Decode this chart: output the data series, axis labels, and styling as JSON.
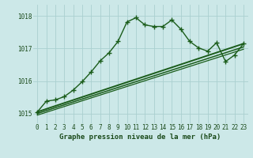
{
  "title": "Graphe pression niveau de la mer (hPa)",
  "bg_color": "#cce8e8",
  "grid_color": "#aad0d0",
  "line_color": "#1a5c1a",
  "x_ticks": [
    0,
    1,
    2,
    3,
    4,
    5,
    6,
    7,
    8,
    9,
    10,
    11,
    12,
    13,
    14,
    15,
    16,
    17,
    18,
    19,
    20,
    21,
    22,
    23
  ],
  "ylim": [
    1014.7,
    1018.35
  ],
  "yticks": [
    1015,
    1016,
    1017,
    1018
  ],
  "series": [
    {
      "x": [
        0,
        1,
        2,
        3,
        4,
        5,
        6,
        7,
        8,
        9,
        10,
        11,
        12,
        13,
        14,
        15,
        16,
        17,
        18,
        19,
        20,
        21,
        22,
        23
      ],
      "y": [
        1015.05,
        1015.38,
        1015.42,
        1015.52,
        1015.72,
        1015.98,
        1016.28,
        1016.62,
        1016.87,
        1017.22,
        1017.82,
        1017.95,
        1017.73,
        1017.68,
        1017.68,
        1017.88,
        1017.6,
        1017.22,
        1017.02,
        1016.92,
        1017.18,
        1016.6,
        1016.8,
        1017.15
      ],
      "marker": "+",
      "markersize": 4,
      "linewidth": 1.0,
      "zorder": 5
    },
    {
      "x": [
        0,
        23
      ],
      "y": [
        1015.05,
        1017.15
      ],
      "marker": null,
      "markersize": 0,
      "linewidth": 1.4,
      "zorder": 3
    },
    {
      "x": [
        0,
        23
      ],
      "y": [
        1015.0,
        1017.05
      ],
      "marker": null,
      "markersize": 0,
      "linewidth": 1.1,
      "zorder": 3
    },
    {
      "x": [
        0,
        23
      ],
      "y": [
        1014.95,
        1016.98
      ],
      "marker": null,
      "markersize": 0,
      "linewidth": 0.9,
      "zorder": 3
    }
  ],
  "title_fontsize": 6.5,
  "tick_fontsize": 5.5
}
